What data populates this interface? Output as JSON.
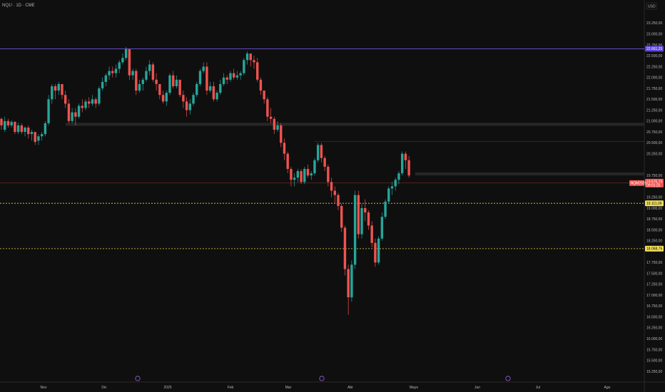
{
  "header": {
    "symbol_label": "NQ1! · 1D · CME",
    "currency": "USD"
  },
  "chart_data": {
    "type": "candlestick",
    "title": "NQ1! · 1D · CME",
    "currency": "USD",
    "ylim": [
      15250,
      23650
    ],
    "y_ticks": [
      "23.250,00",
      "23.000,00",
      "22.750,00",
      "22.500,00",
      "22.250,00",
      "22.000,00",
      "21.750,00",
      "21.500,00",
      "21.250,00",
      "21.000,00",
      "20.750,00",
      "20.500,00",
      "20.250,00",
      "19.750,00",
      "19.500,00",
      "19.250,00",
      "19.000,00",
      "18.750,00",
      "18.500,00",
      "18.250,00",
      "17.750,00",
      "17.500,00",
      "17.250,00",
      "17.000,00",
      "16.750,00",
      "16.500,00",
      "16.250,00",
      "16.000,00",
      "15.750,00",
      "15.500,00",
      "15.250,00"
    ],
    "x_ticks": [
      "Nov",
      "Dic",
      "2025",
      "Feb",
      "Mar",
      "Abr",
      "Mayo",
      "Jun",
      "Jul",
      "Ago"
    ],
    "horizontal_lines": [
      {
        "value": 22661.25,
        "label": "22.661,25",
        "color": "#7b61ff",
        "style": "solid"
      },
      {
        "value": 19111.0,
        "label": "19.111,00",
        "color": "#e5d74a",
        "style": "dashed"
      },
      {
        "value": 18068.75,
        "label": "18.068,75",
        "color": "#e5d74a",
        "style": "dashed"
      }
    ],
    "zones": [
      {
        "from": 20890,
        "to": 20960
      },
      {
        "from": 19750,
        "to": 19820
      }
    ],
    "current_price": {
      "symbol_tag": "NQM2025",
      "value": "19.575,75",
      "countdown": "09:01:25",
      "price": 19575.75
    },
    "candles": [
      [
        21050,
        21080,
        20900,
        20800
      ],
      [
        20800,
        21100,
        21000,
        20750
      ],
      [
        21000,
        21050,
        20900,
        20850
      ],
      [
        20900,
        21020,
        20980,
        20850
      ],
      [
        20980,
        21000,
        20750,
        20700
      ],
      [
        20750,
        20960,
        20900,
        20700
      ],
      [
        20900,
        20950,
        20750,
        20700
      ],
      [
        20750,
        20880,
        20850,
        20650
      ],
      [
        20850,
        20900,
        20700,
        20600
      ],
      [
        20700,
        20800,
        20750,
        20550
      ],
      [
        20750,
        20750,
        20520,
        20450
      ],
      [
        20550,
        20700,
        20650,
        20450
      ],
      [
        20650,
        20750,
        20700,
        20550
      ],
      [
        20700,
        21000,
        20950,
        20650
      ],
      [
        20950,
        21600,
        21500,
        20900
      ],
      [
        21500,
        21850,
        21800,
        21400
      ],
      [
        21800,
        21850,
        21700,
        21500
      ],
      [
        21700,
        21900,
        21850,
        21600
      ],
      [
        21850,
        21800,
        21600,
        21500
      ],
      [
        21600,
        21700,
        21400,
        21300
      ],
      [
        21400,
        21500,
        21000,
        20950
      ],
      [
        21000,
        21300,
        21200,
        20950
      ],
      [
        21200,
        21300,
        21100,
        20900
      ],
      [
        21100,
        21400,
        21350,
        21050
      ],
      [
        21350,
        21500,
        21300,
        21200
      ],
      [
        21300,
        21500,
        21450,
        21250
      ],
      [
        21450,
        21550,
        21400,
        21300
      ],
      [
        21400,
        21600,
        21500,
        21350
      ],
      [
        21500,
        21550,
        21400,
        21300
      ],
      [
        21400,
        21800,
        21750,
        21350
      ],
      [
        21750,
        22000,
        21900,
        21700
      ],
      [
        21900,
        22100,
        22050,
        21800
      ],
      [
        22050,
        22250,
        22150,
        21950
      ],
      [
        22150,
        22250,
        22100,
        22000
      ],
      [
        22100,
        22300,
        22200,
        22000
      ],
      [
        22200,
        22400,
        22350,
        22100
      ],
      [
        22350,
        22550,
        22450,
        22300
      ],
      [
        22450,
        22700,
        22650,
        22400
      ],
      [
        22650,
        22600,
        22050,
        21950
      ],
      [
        22050,
        22200,
        22150,
        21950
      ],
      [
        22150,
        22200,
        21700,
        21600
      ],
      [
        21700,
        21950,
        21850,
        21650
      ],
      [
        21850,
        22000,
        21950,
        21700
      ],
      [
        21950,
        22250,
        22150,
        21900
      ],
      [
        22150,
        22400,
        22300,
        22050
      ],
      [
        22300,
        22350,
        21950,
        21900
      ],
      [
        21950,
        22100,
        21850,
        21700
      ],
      [
        21850,
        21800,
        21600,
        21500
      ],
      [
        21600,
        21700,
        21450,
        21400
      ],
      [
        21450,
        21700,
        21650,
        21350
      ],
      [
        21650,
        22100,
        22050,
        21600
      ],
      [
        22050,
        22150,
        21800,
        21750
      ],
      [
        21800,
        22050,
        21950,
        21750
      ],
      [
        21950,
        21900,
        21600,
        21550
      ],
      [
        21600,
        21700,
        21450,
        21300
      ],
      [
        21450,
        21550,
        21250,
        21100
      ],
      [
        21250,
        21500,
        21400,
        21150
      ],
      [
        21400,
        21650,
        21600,
        21350
      ],
      [
        21600,
        21900,
        21850,
        21550
      ],
      [
        21850,
        22200,
        22150,
        21800
      ],
      [
        22150,
        22350,
        22250,
        22100
      ],
      [
        22250,
        22350,
        21700,
        21600
      ],
      [
        21700,
        21900,
        21800,
        21650
      ],
      [
        21800,
        21900,
        21500,
        21450
      ],
      [
        21500,
        21700,
        21650,
        21450
      ],
      [
        21650,
        21950,
        21850,
        21600
      ],
      [
        21850,
        22100,
        22000,
        21800
      ],
      [
        22000,
        22050,
        21950,
        21850
      ],
      [
        21950,
        22150,
        22100,
        21900
      ],
      [
        22100,
        22200,
        22000,
        21950
      ],
      [
        22000,
        22150,
        22050,
        21950
      ],
      [
        22050,
        22150,
        22100,
        21950
      ],
      [
        22100,
        22450,
        22400,
        22050
      ],
      [
        22400,
        22600,
        22550,
        22300
      ],
      [
        22550,
        22500,
        22400,
        22250
      ],
      [
        22400,
        22500,
        22350,
        22200
      ],
      [
        22350,
        22450,
        21950,
        21900
      ],
      [
        21950,
        22000,
        21700,
        21600
      ],
      [
        21700,
        21650,
        21500,
        21400
      ],
      [
        21500,
        21550,
        21100,
        21000
      ],
      [
        21100,
        21300,
        21050,
        20950
      ],
      [
        21050,
        21100,
        20800,
        20700
      ],
      [
        20800,
        21000,
        20900,
        20750
      ],
      [
        20900,
        20950,
        20500,
        20400
      ],
      [
        20500,
        20600,
        20250,
        20100
      ],
      [
        20250,
        20300,
        19900,
        19800
      ],
      [
        19900,
        19950,
        19650,
        19500
      ],
      [
        19650,
        19800,
        19700,
        19500
      ],
      [
        19700,
        19900,
        19850,
        19600
      ],
      [
        19850,
        19900,
        19600,
        19550
      ],
      [
        19600,
        19950,
        19900,
        19550
      ],
      [
        19900,
        20000,
        19750,
        19700
      ],
      [
        19750,
        19850,
        19800,
        19650
      ],
      [
        19800,
        20150,
        20100,
        19750
      ],
      [
        20100,
        20500,
        20450,
        20050
      ],
      [
        20450,
        20500,
        20150,
        20050
      ],
      [
        20150,
        20200,
        19950,
        19850
      ],
      [
        19950,
        20000,
        19600,
        19500
      ],
      [
        19600,
        19700,
        19400,
        19250
      ],
      [
        19400,
        19500,
        19300,
        19100
      ],
      [
        19300,
        19350,
        19050,
        18950
      ],
      [
        19050,
        19100,
        18550,
        18450
      ],
      [
        18550,
        18600,
        17600,
        17450
      ],
      [
        17600,
        17700,
        16950,
        16550
      ],
      [
        16950,
        17800,
        17700,
        16850
      ],
      [
        17700,
        19400,
        19300,
        17600
      ],
      [
        19300,
        19400,
        18400,
        18300
      ],
      [
        18400,
        19100,
        19000,
        18300
      ],
      [
        19000,
        19200,
        18900,
        18700
      ],
      [
        18900,
        18950,
        18600,
        18500
      ],
      [
        18600,
        18700,
        18200,
        18100
      ],
      [
        18200,
        18300,
        17750,
        17650
      ],
      [
        17750,
        18350,
        18300,
        17700
      ],
      [
        18300,
        18900,
        18800,
        18250
      ],
      [
        18800,
        19200,
        19150,
        18750
      ],
      [
        19150,
        19500,
        19450,
        19100
      ],
      [
        19450,
        19600,
        19500,
        19300
      ],
      [
        19500,
        19700,
        19650,
        19400
      ],
      [
        19650,
        19850,
        19800,
        19550
      ],
      [
        19800,
        20300,
        20250,
        19750
      ],
      [
        20250,
        20300,
        20100,
        19900
      ],
      [
        20100,
        20200,
        19750,
        19700
      ]
    ]
  }
}
